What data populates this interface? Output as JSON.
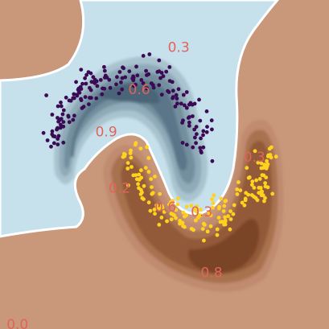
{
  "chart_data": {
    "type": "scatter",
    "title": "",
    "xlabel": "",
    "ylabel": "",
    "xlim": [
      -2.0,
      3.0
    ],
    "ylim": [
      -1.5,
      2.0
    ],
    "grid": false,
    "legend": "none",
    "background_colors": {
      "class_region_a": "#c7e1ec",
      "class_region_b": "#c9977a",
      "boundary": "#ffffff"
    },
    "series": [
      {
        "class": 0,
        "color": "#3b0a55",
        "description_shape": "upper arc (moon 1)",
        "count": 180
      },
      {
        "class": 1,
        "color": "#ffd21f",
        "description_shape": "lower arc (moon 2)",
        "count": 180
      }
    ],
    "contour_labels": [
      {
        "text": "0.6",
        "x": -0.05,
        "y": 1.0
      },
      {
        "text": "0.9",
        "x": -0.55,
        "y": 0.55
      },
      {
        "text": "0.3",
        "x": 0.55,
        "y": 1.45
      },
      {
        "text": "0.3",
        "x": 0.9,
        "y": -0.3
      },
      {
        "text": "0.6",
        "x": 0.35,
        "y": -0.25
      },
      {
        "text": "0.3",
        "x": 1.7,
        "y": 0.28
      },
      {
        "text": "0.2",
        "x": -0.35,
        "y": -0.05
      },
      {
        "text": "0.8",
        "x": 1.05,
        "y": -0.95
      },
      {
        "text": "0.0",
        "x": -1.9,
        "y": -1.5
      }
    ]
  }
}
